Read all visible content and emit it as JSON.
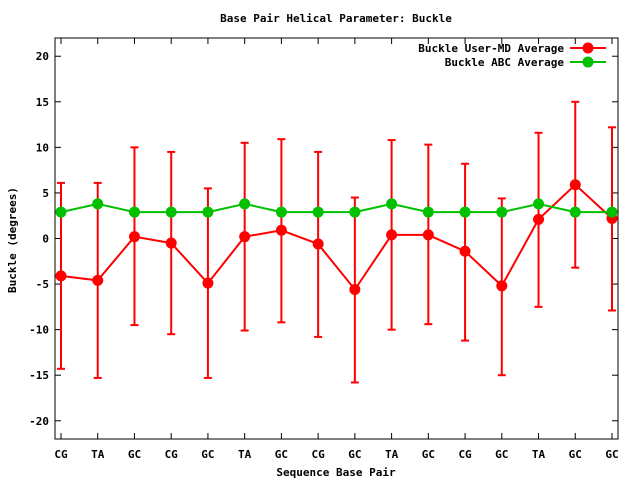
{
  "chart_data": {
    "type": "line",
    "title": "Base Pair Helical Parameter: Buckle",
    "xlabel": "Sequence Base Pair",
    "ylabel": "Buckle (degrees)",
    "ylim": [
      -22,
      22
    ],
    "yticks": [
      -20,
      -15,
      -10,
      -5,
      0,
      5,
      10,
      15,
      20
    ],
    "grid": false,
    "legend_position": "top-right",
    "categories": [
      "CG",
      "TA",
      "GC",
      "CG",
      "GC",
      "TA",
      "GC",
      "CG",
      "GC",
      "TA",
      "GC",
      "CG",
      "GC",
      "TA",
      "GC",
      "GC"
    ],
    "series": [
      {
        "name": "Buckle User-MD Average",
        "color": "#ff0000",
        "values": [
          -4.1,
          -4.6,
          0.2,
          -0.5,
          -4.9,
          0.2,
          0.9,
          -0.6,
          -5.6,
          0.4,
          0.4,
          -1.4,
          -5.2,
          2.1,
          5.9,
          2.2
        ],
        "error_low": [
          -14.3,
          -15.3,
          -9.5,
          -10.5,
          -15.3,
          -10.1,
          -9.2,
          -10.8,
          -15.8,
          -10.0,
          -9.4,
          -11.2,
          -15.0,
          -7.5,
          -3.2,
          -7.9
        ],
        "error_high": [
          6.1,
          6.1,
          10.0,
          9.5,
          5.5,
          10.5,
          10.9,
          9.5,
          4.5,
          10.8,
          10.3,
          8.2,
          4.4,
          11.6,
          15.0,
          12.2
        ]
      },
      {
        "name": "Buckle ABC Average",
        "color": "#00c000",
        "values": [
          2.9,
          3.8,
          2.9,
          2.9,
          2.9,
          3.8,
          2.9,
          2.9,
          2.9,
          3.8,
          2.9,
          2.9,
          2.9,
          3.8,
          2.9,
          2.9
        ]
      }
    ]
  }
}
